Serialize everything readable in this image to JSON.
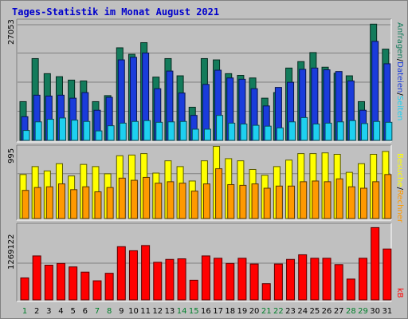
{
  "title": "Tages-Statistik im Monat August 2021",
  "colors": {
    "background": "#c0c0c0",
    "title": "#0000cc",
    "hits": "#137b5b",
    "files": "#1a3cdb",
    "pages": "#1ed0f0",
    "visits": "#ff9900",
    "sites": "#ffff00",
    "kbytes": "#ff0000",
    "weekend_label": "#00802b",
    "weekday_label": "#000000"
  },
  "legend": {
    "top_right": {
      "anfragen": "Anfragen",
      "dateien": "Dateien",
      "seiten": "Seiten",
      "sep": "/"
    },
    "middle_right": {
      "besuche": "Besuche",
      "rechner": "Rechner",
      "sep": "/"
    },
    "bottom_right": {
      "kb": "kB"
    }
  },
  "chart_data": [
    {
      "type": "bar",
      "panel": "requests",
      "ymax_label": "27053",
      "ylim": [
        0,
        27053
      ],
      "categories": [
        "1",
        "2",
        "3",
        "4",
        "5",
        "6",
        "7",
        "8",
        "9",
        "10",
        "11",
        "12",
        "13",
        "14",
        "15",
        "16",
        "17",
        "18",
        "19",
        "20",
        "21",
        "22",
        "23",
        "24",
        "25",
        "26",
        "27",
        "28",
        "29",
        "30",
        "31"
      ],
      "weekend": [
        1,
        7,
        8,
        14,
        15,
        21,
        22,
        28,
        29
      ],
      "series": [
        {
          "name": "Anfragen",
          "values": [
            9000,
            19000,
            15500,
            14800,
            14000,
            13800,
            9000,
            10400,
            21500,
            20000,
            22700,
            14700,
            19000,
            15000,
            7700,
            19000,
            18700,
            15500,
            15100,
            14500,
            9800,
            11100,
            16800,
            18300,
            20400,
            17000,
            15600,
            15000,
            9000,
            27000,
            21200
          ]
        },
        {
          "name": "Dateien",
          "values": [
            5500,
            10500,
            10300,
            10500,
            9800,
            11100,
            7000,
            10000,
            18700,
            19300,
            20300,
            12000,
            16100,
            11000,
            5800,
            13000,
            16300,
            14500,
            14200,
            12000,
            8000,
            12300,
            13500,
            16500,
            16800,
            16400,
            16000,
            13800,
            7000,
            23000,
            17800
          ]
        },
        {
          "name": "Seiten",
          "values": [
            2300,
            4300,
            4900,
            5200,
            4700,
            4400,
            2200,
            3400,
            4000,
            4400,
            4600,
            4200,
            4300,
            4400,
            2600,
            2600,
            5800,
            4000,
            3800,
            3500,
            3300,
            2900,
            4300,
            5300,
            3800,
            4000,
            4300,
            4600,
            3900,
            4400,
            4200
          ]
        }
      ]
    },
    {
      "type": "bar",
      "panel": "visits",
      "ymax_label": "995",
      "ylim": [
        0,
        995
      ],
      "categories": [
        "1",
        "2",
        "3",
        "4",
        "5",
        "6",
        "7",
        "8",
        "9",
        "10",
        "11",
        "12",
        "13",
        "14",
        "15",
        "16",
        "17",
        "18",
        "19",
        "20",
        "21",
        "22",
        "23",
        "24",
        "25",
        "26",
        "27",
        "28",
        "29",
        "30",
        "31"
      ],
      "series": [
        {
          "name": "Besuche",
          "values": [
            610,
            720,
            660,
            760,
            590,
            750,
            720,
            620,
            870,
            880,
            900,
            630,
            800,
            720,
            520,
            800,
            1000,
            830,
            800,
            680,
            600,
            720,
            810,
            900,
            900,
            910,
            890,
            640,
            760,
            890,
            930
          ]
        },
        {
          "name": "Rechner",
          "values": [
            390,
            430,
            440,
            480,
            400,
            440,
            370,
            430,
            560,
            530,
            570,
            490,
            510,
            490,
            380,
            480,
            690,
            470,
            460,
            480,
            420,
            450,
            450,
            510,
            520,
            510,
            550,
            440,
            420,
            510,
            610
          ]
        }
      ]
    },
    {
      "type": "bar",
      "panel": "kbytes",
      "ymax_label": "1269122",
      "ylim": [
        0,
        1269122
      ],
      "categories": [
        "1",
        "2",
        "3",
        "4",
        "5",
        "6",
        "7",
        "8",
        "9",
        "10",
        "11",
        "12",
        "13",
        "14",
        "15",
        "16",
        "17",
        "18",
        "19",
        "20",
        "21",
        "22",
        "23",
        "24",
        "25",
        "26",
        "27",
        "28",
        "29",
        "30",
        "31"
      ],
      "series": [
        {
          "name": "kB",
          "values": [
            380000,
            760000,
            600000,
            630000,
            570000,
            480000,
            330000,
            460000,
            920000,
            850000,
            940000,
            650000,
            700000,
            710000,
            340000,
            760000,
            720000,
            630000,
            720000,
            620000,
            280000,
            620000,
            700000,
            780000,
            720000,
            720000,
            610000,
            360000,
            720000,
            1250000,
            880000
          ]
        }
      ]
    }
  ]
}
